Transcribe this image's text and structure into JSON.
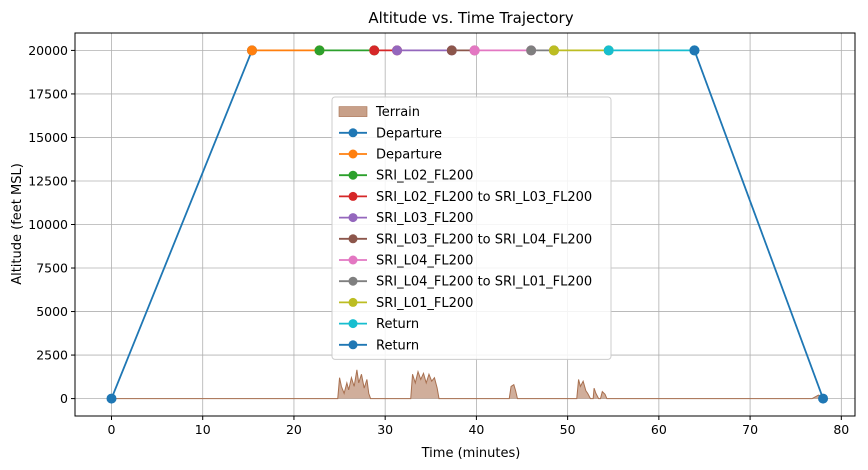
{
  "chart_data": {
    "type": "line",
    "title": "Altitude vs. Time Trajectory",
    "xlabel": "Time (minutes)",
    "ylabel": "Altitude (feet MSL)",
    "xlim": [
      -4,
      81.5
    ],
    "ylim": [
      -1000,
      21000
    ],
    "xticks": [
      0,
      10,
      20,
      30,
      40,
      50,
      60,
      70,
      80
    ],
    "yticks": [
      0,
      2500,
      5000,
      7500,
      10000,
      12500,
      15000,
      17500,
      20000
    ],
    "grid": true,
    "legend_position": "center",
    "terrain": {
      "name": "Terrain",
      "color": "#c8a089",
      "line_color": "#a87050",
      "x": [
        0,
        24.8,
        25.0,
        25.2,
        25.5,
        25.8,
        26.0,
        26.3,
        26.6,
        26.9,
        27.1,
        27.4,
        27.7,
        28.0,
        28.2,
        28.4,
        32.8,
        33.0,
        33.3,
        33.6,
        33.9,
        34.2,
        34.5,
        34.8,
        35.1,
        35.4,
        35.7,
        35.9,
        43.6,
        43.8,
        44.1,
        44.3,
        44.5,
        51.0,
        51.2,
        51.4,
        51.7,
        52.0,
        52.2,
        52.5,
        52.8,
        52.9,
        53.1,
        53.4,
        53.6,
        53.8,
        54.1,
        54.3,
        76.8,
        77.5,
        78.0
      ],
      "y": [
        0,
        0,
        1200,
        700,
        300,
        900,
        500,
        1200,
        700,
        1650,
        900,
        1400,
        600,
        1100,
        300,
        0,
        0,
        1400,
        900,
        1550,
        1100,
        1450,
        900,
        1400,
        1000,
        1200,
        600,
        0,
        0,
        700,
        800,
        450,
        0,
        0,
        1100,
        700,
        1000,
        450,
        300,
        0,
        0,
        600,
        300,
        0,
        0,
        400,
        250,
        0,
        0,
        200,
        0
      ]
    },
    "series": [
      {
        "name": "Departure",
        "color": "#1f77b4",
        "x": [
          0,
          15.4
        ],
        "y": [
          0,
          20000
        ]
      },
      {
        "name": "Departure",
        "color": "#ff7f0e",
        "x": [
          15.4,
          22.8
        ],
        "y": [
          20000,
          20000
        ]
      },
      {
        "name": "SRI_L02_FL200",
        "color": "#2ca02c",
        "x": [
          22.8,
          28.8
        ],
        "y": [
          20000,
          20000
        ]
      },
      {
        "name": "SRI_L02_FL200 to SRI_L03_FL200",
        "color": "#d62728",
        "x": [
          28.8,
          31.3
        ],
        "y": [
          20000,
          20000
        ]
      },
      {
        "name": "SRI_L03_FL200",
        "color": "#9467bd",
        "x": [
          31.3,
          37.3
        ],
        "y": [
          20000,
          20000
        ]
      },
      {
        "name": "SRI_L03_FL200 to SRI_L04_FL200",
        "color": "#8c564b",
        "x": [
          37.3,
          39.8
        ],
        "y": [
          20000,
          20000
        ]
      },
      {
        "name": "SRI_L04_FL200",
        "color": "#e377c2",
        "x": [
          39.8,
          46.0
        ],
        "y": [
          20000,
          20000
        ]
      },
      {
        "name": "SRI_L04_FL200 to SRI_L01_FL200",
        "color": "#7f7f7f",
        "x": [
          46.0,
          48.5
        ],
        "y": [
          20000,
          20000
        ]
      },
      {
        "name": "SRI_L01_FL200",
        "color": "#bcbd22",
        "x": [
          48.5,
          54.5
        ],
        "y": [
          20000,
          20000
        ]
      },
      {
        "name": "Return",
        "color": "#17becf",
        "x": [
          54.5,
          63.9
        ],
        "y": [
          20000,
          20000
        ]
      },
      {
        "name": "Return",
        "color": "#1f77b4",
        "x": [
          63.9,
          78.0
        ],
        "y": [
          20000,
          0
        ]
      }
    ]
  }
}
